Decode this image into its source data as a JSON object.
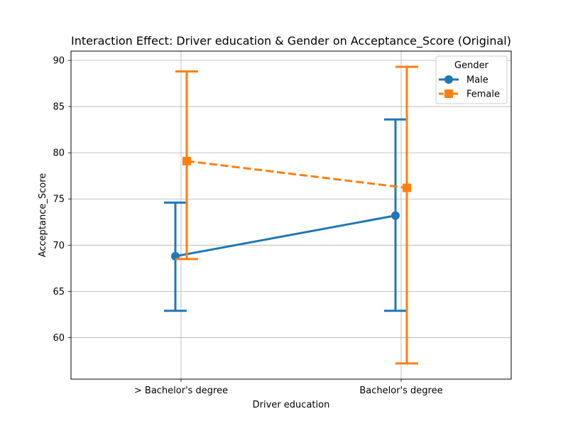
{
  "chart_data": {
    "type": "line",
    "title": "Interaction Effect: Driver education & Gender on Acceptance_Score (Original)",
    "xlabel": "Driver education",
    "ylabel": "Acceptance_Score",
    "categories": [
      "> Bachelor's degree",
      "Bachelor's degree"
    ],
    "ylim": [
      55.5,
      91.0
    ],
    "yticks": [
      60,
      65,
      70,
      75,
      80,
      85,
      90
    ],
    "grid": true,
    "legend": {
      "title": "Gender",
      "placement": "top-right"
    },
    "series": [
      {
        "name": "Male",
        "values": [
          68.8,
          73.2
        ],
        "ci_low": [
          62.9,
          62.9
        ],
        "ci_high": [
          74.6,
          83.6
        ],
        "color": "#1f77b4",
        "marker": "circle",
        "linestyle": "solid"
      },
      {
        "name": "Female",
        "values": [
          79.1,
          76.2
        ],
        "ci_low": [
          68.5,
          57.2
        ],
        "ci_high": [
          88.8,
          89.3
        ],
        "color": "#ff7f0e",
        "marker": "square",
        "linestyle": "dashed"
      }
    ]
  }
}
